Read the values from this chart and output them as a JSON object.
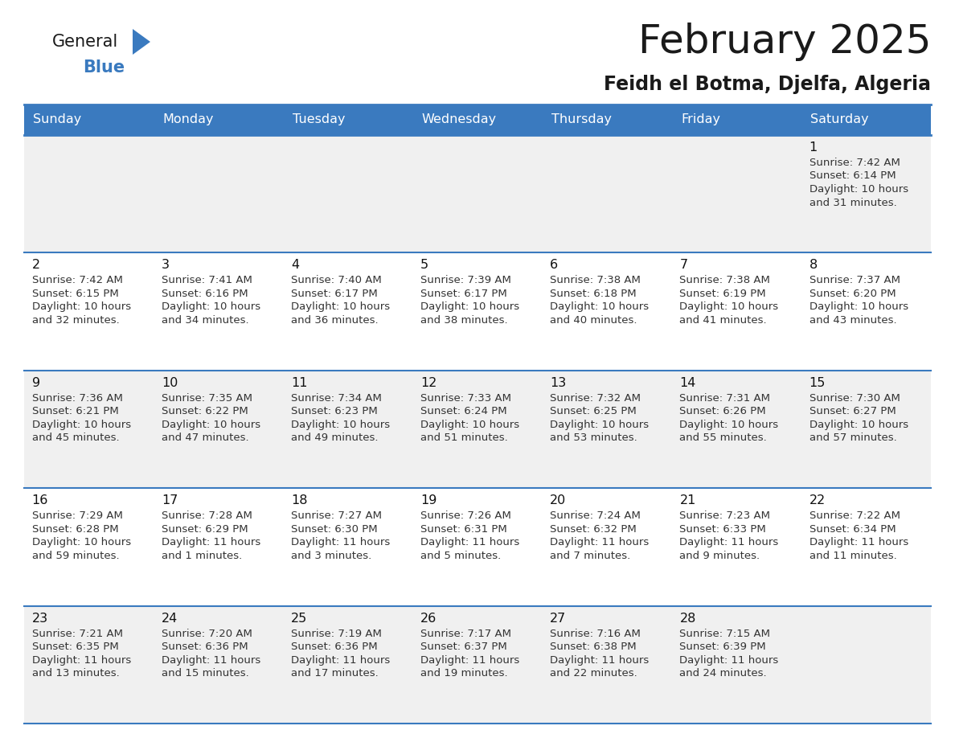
{
  "title": "February 2025",
  "subtitle": "Feidh el Botma, Djelfa, Algeria",
  "header_color": "#3a7abf",
  "header_text_color": "#ffffff",
  "border_color": "#3a7abf",
  "row0_bg": "#f0f0f0",
  "row_odd_bg": "#f0f0f0",
  "row_even_bg": "#ffffff",
  "day_headers": [
    "Sunday",
    "Monday",
    "Tuesday",
    "Wednesday",
    "Thursday",
    "Friday",
    "Saturday"
  ],
  "days": [
    {
      "date": 1,
      "col": 6,
      "row": 0,
      "sunrise": "7:42 AM",
      "sunset": "6:14 PM",
      "daylight_hours": 10,
      "daylight_minutes": 31
    },
    {
      "date": 2,
      "col": 0,
      "row": 1,
      "sunrise": "7:42 AM",
      "sunset": "6:15 PM",
      "daylight_hours": 10,
      "daylight_minutes": 32
    },
    {
      "date": 3,
      "col": 1,
      "row": 1,
      "sunrise": "7:41 AM",
      "sunset": "6:16 PM",
      "daylight_hours": 10,
      "daylight_minutes": 34
    },
    {
      "date": 4,
      "col": 2,
      "row": 1,
      "sunrise": "7:40 AM",
      "sunset": "6:17 PM",
      "daylight_hours": 10,
      "daylight_minutes": 36
    },
    {
      "date": 5,
      "col": 3,
      "row": 1,
      "sunrise": "7:39 AM",
      "sunset": "6:17 PM",
      "daylight_hours": 10,
      "daylight_minutes": 38
    },
    {
      "date": 6,
      "col": 4,
      "row": 1,
      "sunrise": "7:38 AM",
      "sunset": "6:18 PM",
      "daylight_hours": 10,
      "daylight_minutes": 40
    },
    {
      "date": 7,
      "col": 5,
      "row": 1,
      "sunrise": "7:38 AM",
      "sunset": "6:19 PM",
      "daylight_hours": 10,
      "daylight_minutes": 41
    },
    {
      "date": 8,
      "col": 6,
      "row": 1,
      "sunrise": "7:37 AM",
      "sunset": "6:20 PM",
      "daylight_hours": 10,
      "daylight_minutes": 43
    },
    {
      "date": 9,
      "col": 0,
      "row": 2,
      "sunrise": "7:36 AM",
      "sunset": "6:21 PM",
      "daylight_hours": 10,
      "daylight_minutes": 45
    },
    {
      "date": 10,
      "col": 1,
      "row": 2,
      "sunrise": "7:35 AM",
      "sunset": "6:22 PM",
      "daylight_hours": 10,
      "daylight_minutes": 47
    },
    {
      "date": 11,
      "col": 2,
      "row": 2,
      "sunrise": "7:34 AM",
      "sunset": "6:23 PM",
      "daylight_hours": 10,
      "daylight_minutes": 49
    },
    {
      "date": 12,
      "col": 3,
      "row": 2,
      "sunrise": "7:33 AM",
      "sunset": "6:24 PM",
      "daylight_hours": 10,
      "daylight_minutes": 51
    },
    {
      "date": 13,
      "col": 4,
      "row": 2,
      "sunrise": "7:32 AM",
      "sunset": "6:25 PM",
      "daylight_hours": 10,
      "daylight_minutes": 53
    },
    {
      "date": 14,
      "col": 5,
      "row": 2,
      "sunrise": "7:31 AM",
      "sunset": "6:26 PM",
      "daylight_hours": 10,
      "daylight_minutes": 55
    },
    {
      "date": 15,
      "col": 6,
      "row": 2,
      "sunrise": "7:30 AM",
      "sunset": "6:27 PM",
      "daylight_hours": 10,
      "daylight_minutes": 57
    },
    {
      "date": 16,
      "col": 0,
      "row": 3,
      "sunrise": "7:29 AM",
      "sunset": "6:28 PM",
      "daylight_hours": 10,
      "daylight_minutes": 59
    },
    {
      "date": 17,
      "col": 1,
      "row": 3,
      "sunrise": "7:28 AM",
      "sunset": "6:29 PM",
      "daylight_hours": 11,
      "daylight_minutes": 1
    },
    {
      "date": 18,
      "col": 2,
      "row": 3,
      "sunrise": "7:27 AM",
      "sunset": "6:30 PM",
      "daylight_hours": 11,
      "daylight_minutes": 3
    },
    {
      "date": 19,
      "col": 3,
      "row": 3,
      "sunrise": "7:26 AM",
      "sunset": "6:31 PM",
      "daylight_hours": 11,
      "daylight_minutes": 5
    },
    {
      "date": 20,
      "col": 4,
      "row": 3,
      "sunrise": "7:24 AM",
      "sunset": "6:32 PM",
      "daylight_hours": 11,
      "daylight_minutes": 7
    },
    {
      "date": 21,
      "col": 5,
      "row": 3,
      "sunrise": "7:23 AM",
      "sunset": "6:33 PM",
      "daylight_hours": 11,
      "daylight_minutes": 9
    },
    {
      "date": 22,
      "col": 6,
      "row": 3,
      "sunrise": "7:22 AM",
      "sunset": "6:34 PM",
      "daylight_hours": 11,
      "daylight_minutes": 11
    },
    {
      "date": 23,
      "col": 0,
      "row": 4,
      "sunrise": "7:21 AM",
      "sunset": "6:35 PM",
      "daylight_hours": 11,
      "daylight_minutes": 13
    },
    {
      "date": 24,
      "col": 1,
      "row": 4,
      "sunrise": "7:20 AM",
      "sunset": "6:36 PM",
      "daylight_hours": 11,
      "daylight_minutes": 15
    },
    {
      "date": 25,
      "col": 2,
      "row": 4,
      "sunrise": "7:19 AM",
      "sunset": "6:36 PM",
      "daylight_hours": 11,
      "daylight_minutes": 17
    },
    {
      "date": 26,
      "col": 3,
      "row": 4,
      "sunrise": "7:17 AM",
      "sunset": "6:37 PM",
      "daylight_hours": 11,
      "daylight_minutes": 19
    },
    {
      "date": 27,
      "col": 4,
      "row": 4,
      "sunrise": "7:16 AM",
      "sunset": "6:38 PM",
      "daylight_hours": 11,
      "daylight_minutes": 22
    },
    {
      "date": 28,
      "col": 5,
      "row": 4,
      "sunrise": "7:15 AM",
      "sunset": "6:39 PM",
      "daylight_hours": 11,
      "daylight_minutes": 24
    }
  ]
}
